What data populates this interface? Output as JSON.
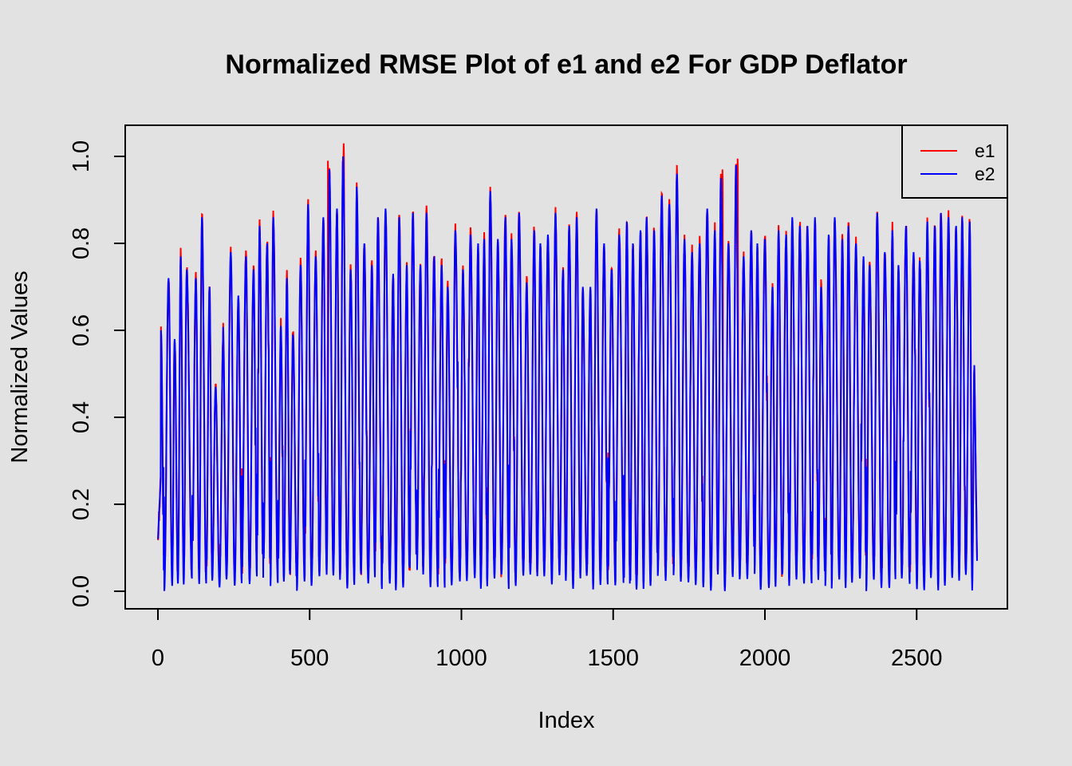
{
  "chart_data": {
    "type": "line",
    "title": "Normalized RMSE Plot of e1 and e2 For GDP Deflator",
    "xlabel": "Index",
    "ylabel": "Normalized Values",
    "xlim": [
      0,
      2700
    ],
    "ylim": [
      0,
      1.0
    ],
    "x_ticks": [
      0,
      500,
      1000,
      1500,
      2000,
      2500
    ],
    "x_tick_labels": [
      "0",
      "500",
      "1000",
      "1500",
      "2000",
      "2500"
    ],
    "y_ticks": [
      0,
      0.2,
      0.4,
      0.6,
      0.8,
      1.0
    ],
    "y_tick_labels": [
      "0.0",
      "0.2",
      "0.4",
      "0.6",
      "0.8",
      "1.0"
    ],
    "n_points": 2700,
    "legend_position": "top-right",
    "series": [
      {
        "name": "e1",
        "color": "#ff0000"
      },
      {
        "name": "e2",
        "color": "#0000ff"
      }
    ],
    "e2_peaks": [
      [
        10,
        0.6
      ],
      [
        35,
        0.72
      ],
      [
        55,
        0.58
      ],
      [
        75,
        0.77
      ],
      [
        95,
        0.74
      ],
      [
        125,
        0.72
      ],
      [
        145,
        0.86
      ],
      [
        170,
        0.7
      ],
      [
        190,
        0.47
      ],
      [
        215,
        0.58
      ],
      [
        240,
        0.78
      ],
      [
        265,
        0.68
      ],
      [
        290,
        0.77
      ],
      [
        315,
        0.74
      ],
      [
        335,
        0.84
      ],
      [
        360,
        0.8
      ],
      [
        380,
        0.86
      ],
      [
        405,
        0.61
      ],
      [
        425,
        0.72
      ],
      [
        445,
        0.59
      ],
      [
        470,
        0.75
      ],
      [
        495,
        0.89
      ],
      [
        520,
        0.77
      ],
      [
        545,
        0.86
      ],
      [
        565,
        0.97
      ],
      [
        590,
        0.88
      ],
      [
        610,
        1.0
      ],
      [
        635,
        0.74
      ],
      [
        655,
        0.93
      ],
      [
        680,
        0.8
      ],
      [
        705,
        0.75
      ],
      [
        725,
        0.86
      ],
      [
        750,
        0.88
      ],
      [
        775,
        0.73
      ],
      [
        795,
        0.86
      ],
      [
        820,
        0.75
      ],
      [
        840,
        0.87
      ],
      [
        865,
        0.75
      ],
      [
        885,
        0.87
      ],
      [
        910,
        0.77
      ],
      [
        935,
        0.75
      ],
      [
        955,
        0.7
      ],
      [
        980,
        0.83
      ],
      [
        1005,
        0.74
      ],
      [
        1030,
        0.82
      ],
      [
        1055,
        0.8
      ],
      [
        1075,
        0.81
      ],
      [
        1095,
        0.92
      ],
      [
        1120,
        0.81
      ],
      [
        1145,
        0.86
      ],
      [
        1165,
        0.81
      ],
      [
        1190,
        0.87
      ],
      [
        1215,
        0.71
      ],
      [
        1240,
        0.83
      ],
      [
        1260,
        0.8
      ],
      [
        1285,
        0.82
      ],
      [
        1310,
        0.87
      ],
      [
        1335,
        0.74
      ],
      [
        1355,
        0.84
      ],
      [
        1380,
        0.86
      ],
      [
        1400,
        0.7
      ],
      [
        1425,
        0.7
      ],
      [
        1445,
        0.88
      ],
      [
        1470,
        0.8
      ],
      [
        1495,
        0.74
      ],
      [
        1520,
        0.82
      ],
      [
        1545,
        0.85
      ],
      [
        1565,
        0.8
      ],
      [
        1590,
        0.83
      ],
      [
        1610,
        0.86
      ],
      [
        1635,
        0.83
      ],
      [
        1660,
        0.91
      ],
      [
        1685,
        0.89
      ],
      [
        1710,
        0.96
      ],
      [
        1735,
        0.81
      ],
      [
        1760,
        0.78
      ],
      [
        1785,
        0.8
      ],
      [
        1810,
        0.88
      ],
      [
        1835,
        0.83
      ],
      [
        1855,
        0.95
      ],
      [
        1880,
        0.8
      ],
      [
        1905,
        0.98
      ],
      [
        1930,
        0.77
      ],
      [
        1955,
        0.83
      ],
      [
        1975,
        0.8
      ],
      [
        2000,
        0.81
      ],
      [
        2025,
        0.7
      ],
      [
        2045,
        0.83
      ],
      [
        2070,
        0.82
      ],
      [
        2090,
        0.86
      ],
      [
        2115,
        0.84
      ],
      [
        2140,
        0.84
      ],
      [
        2165,
        0.86
      ],
      [
        2185,
        0.7
      ],
      [
        2210,
        0.82
      ],
      [
        2230,
        0.86
      ],
      [
        2255,
        0.81
      ],
      [
        2275,
        0.84
      ],
      [
        2300,
        0.8
      ],
      [
        2325,
        0.77
      ],
      [
        2345,
        0.75
      ],
      [
        2370,
        0.87
      ],
      [
        2395,
        0.78
      ],
      [
        2420,
        0.83
      ],
      [
        2440,
        0.75
      ],
      [
        2465,
        0.84
      ],
      [
        2490,
        0.78
      ],
      [
        2510,
        0.76
      ],
      [
        2535,
        0.85
      ],
      [
        2560,
        0.84
      ],
      [
        2580,
        0.87
      ],
      [
        2605,
        0.86
      ],
      [
        2630,
        0.84
      ],
      [
        2650,
        0.86
      ],
      [
        2675,
        0.85
      ],
      [
        2690,
        0.52
      ]
    ],
    "e1_peaks": [
      [
        560,
        0.99
      ],
      [
        612,
        1.03
      ],
      [
        655,
        0.94
      ],
      [
        1095,
        0.93
      ],
      [
        1710,
        0.98
      ],
      [
        1860,
        0.97
      ],
      [
        1910,
        0.995
      ]
    ]
  }
}
